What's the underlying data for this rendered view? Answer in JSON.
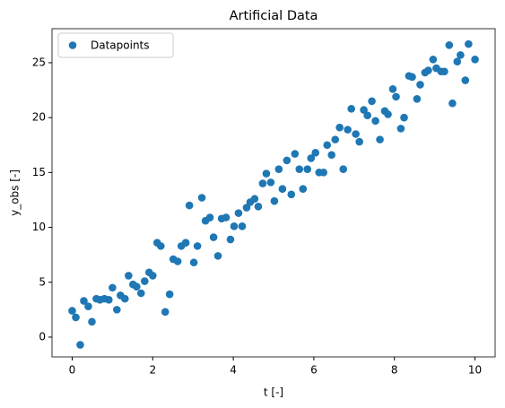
{
  "chart_data": {
    "type": "scatter",
    "title": "Artificial Data",
    "x_label": "t [-]",
    "y_label": "y_obs [-]",
    "series": [
      {
        "name": "Datapoints",
        "color": "#1f77b4",
        "x": [
          0.0,
          0.09,
          0.2,
          0.29,
          0.4,
          0.49,
          0.6,
          0.69,
          0.8,
          0.91,
          1.0,
          1.11,
          1.2,
          1.31,
          1.4,
          1.51,
          1.6,
          1.71,
          1.8,
          1.91,
          2.0,
          2.11,
          2.2,
          2.31,
          2.42,
          2.51,
          2.62,
          2.71,
          2.82,
          2.91,
          3.02,
          3.11,
          3.22,
          3.31,
          3.42,
          3.51,
          3.62,
          3.71,
          3.82,
          3.93,
          4.02,
          4.13,
          4.22,
          4.33,
          4.42,
          4.53,
          4.62,
          4.73,
          4.82,
          4.93,
          5.02,
          5.13,
          5.22,
          5.33,
          5.44,
          5.53,
          5.64,
          5.73,
          5.84,
          5.93,
          6.04,
          6.13,
          6.24,
          6.33,
          6.44,
          6.53,
          6.64,
          6.73,
          6.84,
          6.93,
          7.04,
          7.13,
          7.24,
          7.33,
          7.44,
          7.53,
          7.64,
          7.76,
          7.84,
          7.96,
          8.04,
          8.16,
          8.24,
          8.36,
          8.44,
          8.56,
          8.64,
          8.76,
          8.84,
          8.96,
          9.04,
          9.16,
          9.24,
          9.36,
          9.44,
          9.56,
          9.64,
          9.76,
          9.84,
          10.0
        ],
        "values": [
          2.4,
          1.8,
          -0.7,
          3.3,
          2.8,
          1.4,
          3.5,
          3.4,
          3.5,
          3.4,
          4.5,
          2.5,
          3.8,
          3.5,
          5.6,
          4.8,
          4.6,
          4.0,
          5.1,
          5.9,
          5.6,
          8.6,
          8.3,
          2.3,
          3.9,
          7.1,
          6.9,
          8.3,
          8.6,
          12.0,
          6.8,
          8.3,
          12.7,
          10.6,
          10.9,
          9.1,
          7.4,
          10.8,
          10.9,
          8.9,
          10.1,
          11.3,
          10.1,
          11.8,
          12.3,
          12.6,
          11.9,
          14.0,
          14.9,
          14.1,
          12.4,
          15.3,
          13.5,
          16.1,
          13.0,
          16.7,
          15.3,
          13.5,
          15.3,
          16.3,
          16.8,
          15.0,
          15.0,
          17.5,
          16.6,
          18.0,
          19.1,
          15.3,
          18.9,
          20.8,
          18.5,
          17.8,
          20.7,
          20.2,
          21.5,
          19.7,
          18.0,
          20.6,
          20.3,
          22.6,
          21.9,
          19.0,
          20.0,
          23.8,
          23.7,
          21.7,
          23.0,
          24.1,
          24.3,
          25.3,
          24.5,
          24.2,
          24.2,
          26.6,
          21.3,
          25.1,
          25.7,
          23.4,
          26.7,
          25.3
        ]
      }
    ],
    "xlim": [
      -0.5,
      10.5
    ],
    "ylim": [
      -1.8,
      28.1
    ],
    "xticks": [
      0,
      2,
      4,
      6,
      8,
      10
    ],
    "yticks": [
      0,
      5,
      10,
      15,
      20,
      25
    ],
    "legend": "upper left"
  }
}
